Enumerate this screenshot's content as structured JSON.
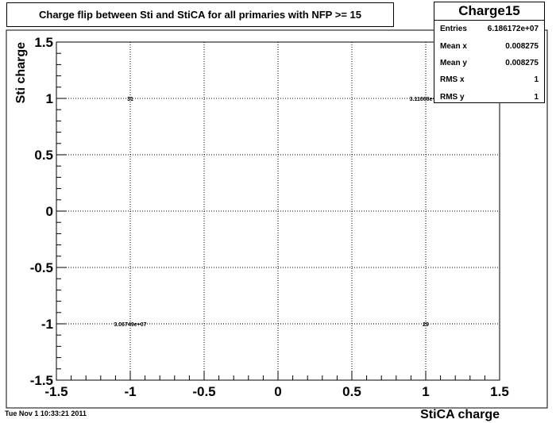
{
  "title": "Charge flip between Sti and StiCA for all primaries with NFP >= 15",
  "stats": {
    "name": "Charge15",
    "rows": [
      {
        "label": "Entries",
        "value": "6.186172e+07"
      },
      {
        "label": "Mean x",
        "value": "0.008275"
      },
      {
        "label": "Mean y",
        "value": "0.008275"
      },
      {
        "label": "RMS x",
        "value": "1"
      },
      {
        "label": "RMS y",
        "value": "1"
      }
    ]
  },
  "footer": {
    "date": "Tue Nov  1 10:33:21 2011"
  },
  "chart_data": {
    "type": "heatmap",
    "title": "Charge flip between Sti and StiCA for all primaries with NFP >= 15",
    "xlabel": "StiCA charge",
    "ylabel": "Sti charge",
    "xlim": [
      -1.5,
      1.5
    ],
    "ylim": [
      -1.5,
      1.5
    ],
    "grid": true,
    "xticks": [
      "-1.5",
      "-1",
      "-0.5",
      "0",
      "0.5",
      "1",
      "1.5"
    ],
    "yticks": [
      "-1.5",
      "-1",
      "-0.5",
      "0",
      "0.5",
      "1",
      "1.5"
    ],
    "cells": [
      {
        "x": -1,
        "y": 1,
        "label": "31"
      },
      {
        "x": 1,
        "y": 1,
        "label": "3.11068e+07"
      },
      {
        "x": -1,
        "y": -1,
        "label": "3.06749e+07"
      },
      {
        "x": 1,
        "y": -1,
        "label": "29"
      }
    ]
  }
}
